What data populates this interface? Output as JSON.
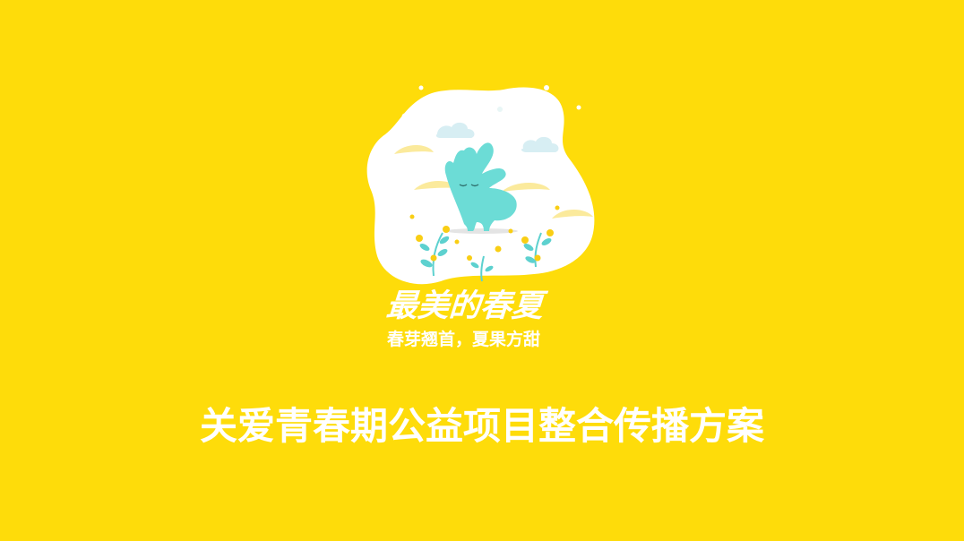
{
  "slide": {
    "background_color": "#FEDC0A",
    "logo": {
      "title": "最美的春夏",
      "subtitle": "春芽翘首，夏果方甜",
      "art": {
        "blob_color": "#FFFFFF",
        "mascot_color": "#6CDCD6",
        "leaf_color": "#5DD1CF",
        "flower_color": "#F9CE14",
        "cloud_color": "#FBEA9C"
      }
    },
    "title": "关爱青春期公益项目整合传播方案"
  }
}
